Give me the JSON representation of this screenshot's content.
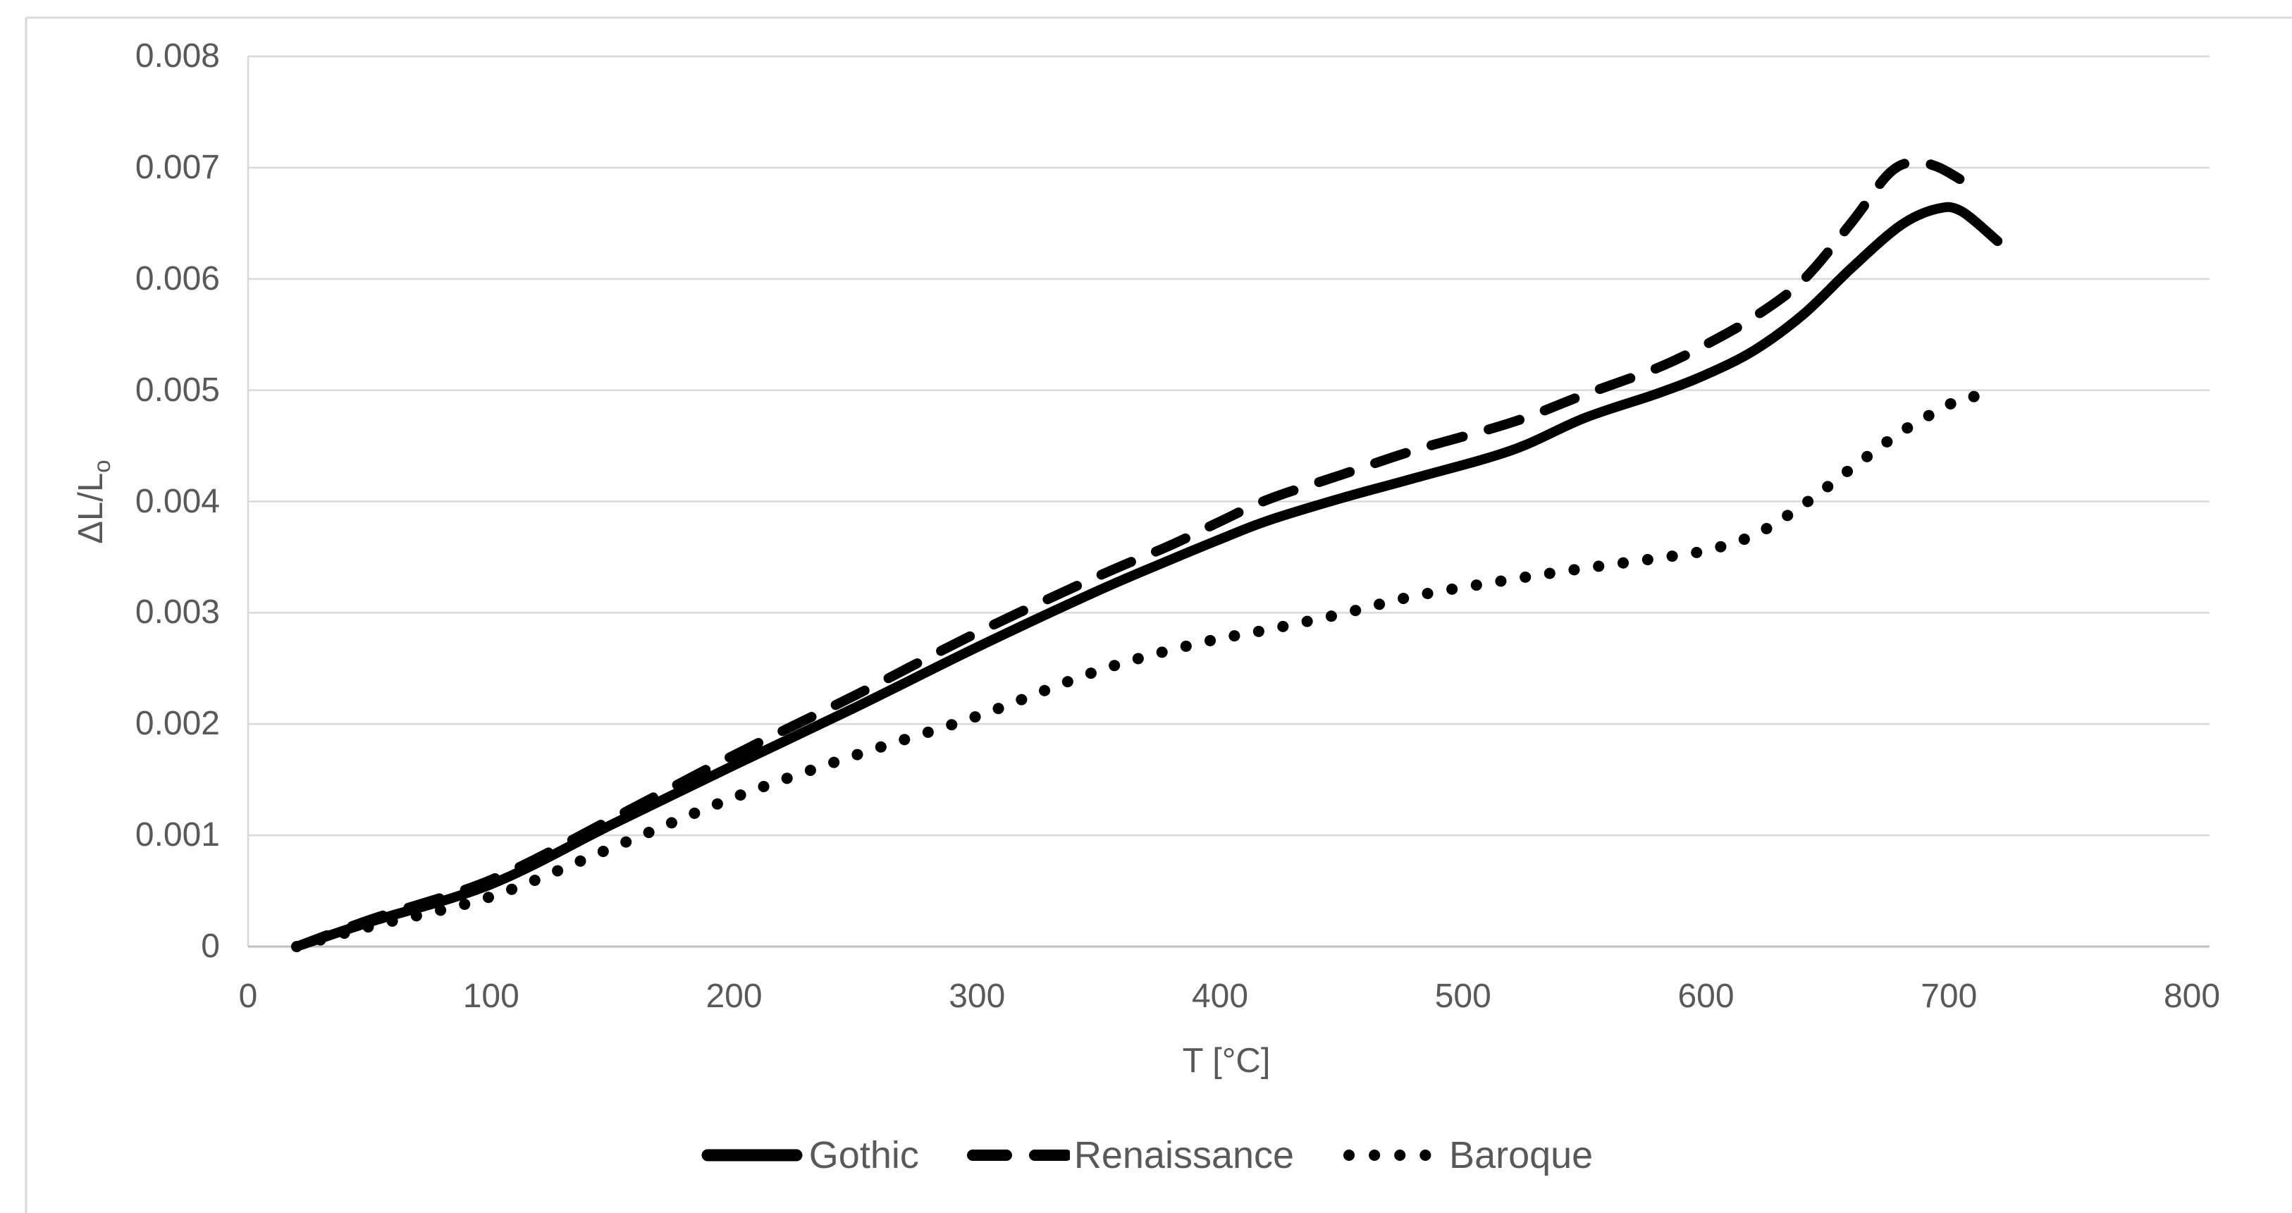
{
  "figure": {
    "background": "#ffffff",
    "border_color": "#d9d9d9"
  },
  "colors": {
    "text": "#595959",
    "gridline": "#d9d9d9",
    "x_axis_line": "#bfbfbf",
    "y_axis_line": "#d9d9d9",
    "series_color": "#000000"
  },
  "chart_data": {
    "type": "line",
    "title": "",
    "xlabel": "T [°C]",
    "ylabel": "ΔL/L",
    "ylabel_sub": "o",
    "xlim": [
      0,
      800
    ],
    "ylim": [
      0,
      0.008
    ],
    "x_tick_labels": [
      "0",
      "100",
      "200",
      "300",
      "400",
      "500",
      "600",
      "700",
      "800"
    ],
    "y_tick_labels": [
      "0.008",
      "0.007",
      "0.006",
      "0.005",
      "0.004",
      "0.003",
      "0.002",
      "0.001",
      "0"
    ],
    "grid": "horizontal",
    "legend_position": "bottom-center",
    "series": [
      {
        "name": "Gothic",
        "line_style": "solid",
        "color": "#000000",
        "points": [
          [
            20,
            0
          ],
          [
            50,
            0.00022
          ],
          [
            100,
            0.00056
          ],
          [
            150,
            0.0011
          ],
          [
            200,
            0.00163
          ],
          [
            250,
            0.00215
          ],
          [
            300,
            0.00269
          ],
          [
            350,
            0.0032
          ],
          [
            380,
            0.00348
          ],
          [
            400,
            0.00366
          ],
          [
            420,
            0.00383
          ],
          [
            450,
            0.00403
          ],
          [
            480,
            0.00421
          ],
          [
            520,
            0.00446
          ],
          [
            550,
            0.00475
          ],
          [
            580,
            0.00497
          ],
          [
            600,
            0.00514
          ],
          [
            620,
            0.00536
          ],
          [
            640,
            0.00568
          ],
          [
            660,
            0.0061
          ],
          [
            680,
            0.00648
          ],
          [
            695,
            0.00663
          ],
          [
            705,
            0.00661
          ],
          [
            720,
            0.00634
          ]
        ]
      },
      {
        "name": "Renaissance",
        "line_style": "dashed",
        "color": "#000000",
        "points": [
          [
            20,
            0
          ],
          [
            50,
            0.00024
          ],
          [
            100,
            0.0006
          ],
          [
            150,
            0.00115
          ],
          [
            200,
            0.00172
          ],
          [
            250,
            0.00226
          ],
          [
            300,
            0.00282
          ],
          [
            350,
            0.00333
          ],
          [
            380,
            0.00361
          ],
          [
            400,
            0.00382
          ],
          [
            420,
            0.00402
          ],
          [
            450,
            0.00424
          ],
          [
            480,
            0.00446
          ],
          [
            520,
            0.00471
          ],
          [
            550,
            0.00496
          ],
          [
            580,
            0.0052
          ],
          [
            600,
            0.00541
          ],
          [
            620,
            0.00566
          ],
          [
            640,
            0.00599
          ],
          [
            660,
            0.00651
          ],
          [
            675,
            0.00694
          ],
          [
            685,
            0.00705
          ],
          [
            695,
            0.00701
          ],
          [
            705,
            0.00689
          ]
        ]
      },
      {
        "name": "Baroque",
        "line_style": "dotted",
        "color": "#000000",
        "points": [
          [
            20,
            0
          ],
          [
            50,
            0.00018
          ],
          [
            100,
            0.00045
          ],
          [
            150,
            0.00089
          ],
          [
            200,
            0.00134
          ],
          [
            250,
            0.00172
          ],
          [
            300,
            0.00207
          ],
          [
            350,
            0.00248
          ],
          [
            390,
            0.00272
          ],
          [
            420,
            0.00285
          ],
          [
            450,
            0.00299
          ],
          [
            480,
            0.00315
          ],
          [
            520,
            0.0033
          ],
          [
            550,
            0.0034
          ],
          [
            580,
            0.00349
          ],
          [
            600,
            0.00356
          ],
          [
            620,
            0.0037
          ],
          [
            640,
            0.00397
          ],
          [
            660,
            0.0043
          ],
          [
            680,
            0.00462
          ],
          [
            695,
            0.00481
          ],
          [
            708,
            0.00494
          ],
          [
            720,
            0.0049
          ]
        ]
      }
    ]
  }
}
